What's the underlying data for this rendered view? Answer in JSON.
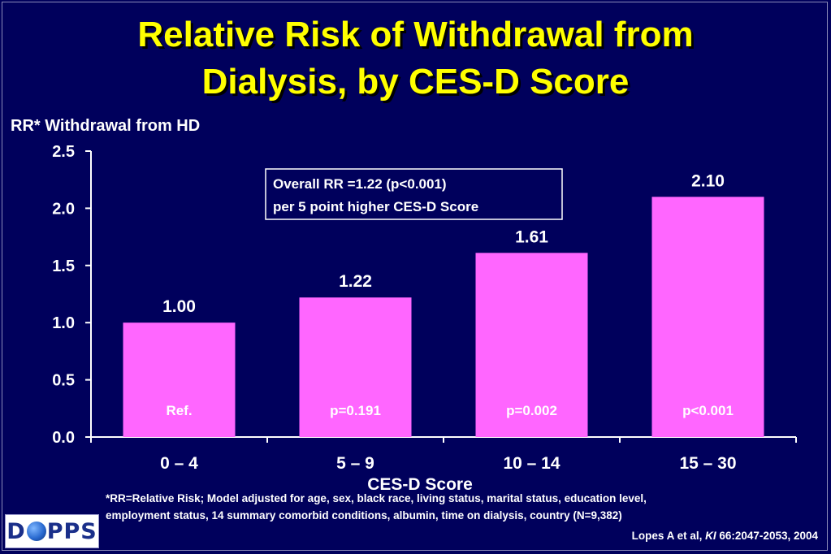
{
  "title_line1": "Relative Risk of Withdrawal from",
  "title_line2": "Dialysis, by CES-D Score",
  "annotation": {
    "line1": "Overall RR =1.22 (p<0.001)",
    "line2": "per 5 point higher CES-D Score"
  },
  "footnote": "*RR=Relative Risk; Model adjusted for age, sex, black race, living status, marital status, education level,\nemployment status, 14 summary comorbid conditions, albumin, time on dialysis, country  (N=9,382)",
  "citation": {
    "prefix": "Lopes A et al, ",
    "journal": "KI",
    "suffix": " 66:2047-2053, 2004"
  },
  "logo": {
    "part1": "D",
    "part2": "PPS",
    "icon": "globe-icon"
  },
  "colors": {
    "background": "#00005c",
    "title": "#ffff00",
    "bar": "#ff66ff",
    "text": "#ffffff"
  },
  "chart_data": {
    "type": "bar",
    "title": "Relative Risk of Withdrawal from Dialysis, by CES-D Score",
    "ylabel": "RR* Withdrawal from HD",
    "xlabel": "CES-D Score",
    "categories": [
      "0 – 4",
      "5 – 9",
      "10 – 14",
      "15 – 30"
    ],
    "values": [
      1.0,
      1.22,
      1.61,
      2.1
    ],
    "value_labels": [
      "1.00",
      "1.22",
      "1.61",
      "2.10"
    ],
    "bar_labels": [
      "Ref.",
      "p=0.191",
      "p=0.002",
      "p<0.001"
    ],
    "ylim": [
      0,
      2.5
    ],
    "yticks": [
      0,
      0.5,
      1.0,
      1.5,
      2.0,
      2.5
    ],
    "ytick_labels": [
      "0.0",
      "0.5",
      "1.0",
      "1.5",
      "2.0",
      "2.5"
    ],
    "grid": false,
    "legend": "none"
  }
}
